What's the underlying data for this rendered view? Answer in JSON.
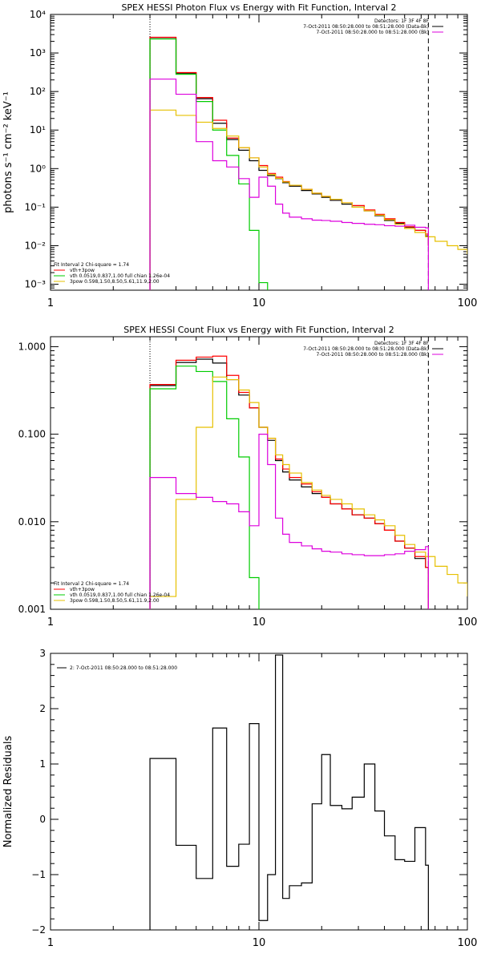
{
  "chart_data": [
    {
      "type": "line",
      "title": "SPEX HESSI Photon Flux vs Energy with Fit Function, Interval 2",
      "xlabel": "",
      "ylabel": "photons s⁻¹ cm⁻² keV⁻¹",
      "xscale": "log",
      "yscale": "log",
      "xlim": [
        1,
        100
      ],
      "ylim": [
        0.0007,
        10000
      ],
      "xticks": [
        {
          "v": 1,
          "label": "1"
        },
        {
          "v": 10,
          "label": "10"
        },
        {
          "v": 100,
          "label": "100"
        }
      ],
      "yticks": [
        {
          "v": 0.001,
          "label": "10⁻³"
        },
        {
          "v": 0.01,
          "label": "10⁻²"
        },
        {
          "v": 0.1,
          "label": "10⁻¹"
        },
        {
          "v": 1,
          "label": "10⁰"
        },
        {
          "v": 10,
          "label": "10¹"
        },
        {
          "v": 100,
          "label": "10²"
        },
        {
          "v": 1000,
          "label": "10³"
        },
        {
          "v": 10000,
          "label": "10⁴"
        }
      ],
      "vlines": [
        {
          "x": 3.0,
          "style": "dotted"
        },
        {
          "x": 65,
          "style": "dashed"
        }
      ],
      "legend_top_right": [
        "Detectors: 1F 3F 4F 8F",
        "7-Oct-2011 08:50:28.000 to 08:51:28.000 (Data-Bk)",
        "7-Oct-2011 08:50:28.000 to 08:51:28.000 (Bk)"
      ],
      "legend_bottom_left": [
        "Fit Interval  2    Chi-square = 1.74",
        "vth+3pow",
        "vth 0.0519,0.837,1.00  full chian 1.26e-04",
        "3pow 0.598,1.50,8.50,5.61,11.9,2.00"
      ],
      "series": [
        {
          "color": "#000000",
          "x": [
            3,
            4,
            5,
            6,
            7,
            8,
            9,
            10,
            11,
            12,
            13,
            14,
            16,
            18,
            20,
            22,
            25,
            28,
            32,
            36,
            40,
            45,
            50,
            56,
            63,
            65
          ],
          "y": [
            2500,
            300,
            65,
            15,
            5.7,
            3.0,
            1.6,
            0.9,
            0.66,
            0.55,
            0.43,
            0.35,
            0.27,
            0.22,
            0.18,
            0.15,
            0.12,
            0.1,
            0.08,
            0.06,
            0.045,
            0.038,
            0.03,
            0.025,
            0.018,
            0.01
          ]
        },
        {
          "color": "#ff0000",
          "x": [
            3,
            4,
            5,
            6,
            7,
            8,
            9,
            10,
            11,
            12,
            13,
            14,
            16,
            18,
            20,
            22,
            25,
            28,
            32,
            36,
            40,
            45,
            50,
            56,
            63,
            65
          ],
          "y": [
            2550,
            310,
            70,
            18,
            6.2,
            3.5,
            1.9,
            1.2,
            0.75,
            0.6,
            0.46,
            0.37,
            0.29,
            0.23,
            0.19,
            0.16,
            0.13,
            0.11,
            0.085,
            0.065,
            0.05,
            0.04,
            0.031,
            0.025,
            0.02,
            0.01
          ]
        },
        {
          "color": "#00cc00",
          "x": [
            3,
            4,
            5,
            6,
            7,
            8,
            9,
            10,
            11
          ],
          "y": [
            2300,
            280,
            55,
            10,
            2.2,
            0.4,
            0.025,
            0.0011,
            0.0007
          ]
        },
        {
          "color": "#e6c000",
          "x": [
            3,
            4,
            5,
            6,
            7,
            8,
            9,
            10,
            11,
            12,
            13,
            14,
            16,
            18,
            20,
            22,
            25,
            28,
            32,
            36,
            40,
            45,
            50,
            56,
            63,
            70,
            80,
            90,
            100
          ],
          "y": [
            33,
            24,
            16,
            11,
            7.0,
            3.5,
            1.9,
            1.1,
            0.7,
            0.56,
            0.45,
            0.37,
            0.29,
            0.23,
            0.19,
            0.16,
            0.13,
            0.1,
            0.08,
            0.062,
            0.047,
            0.036,
            0.028,
            0.022,
            0.017,
            0.013,
            0.01,
            0.008,
            0.006
          ]
        },
        {
          "color": "#dd00dd",
          "x": [
            3,
            4,
            5,
            6,
            7,
            8,
            9,
            10,
            11,
            12,
            13,
            14,
            16,
            18,
            20,
            22,
            25,
            28,
            32,
            36,
            40,
            45,
            50,
            56,
            63,
            65
          ],
          "y": [
            210,
            85,
            5.0,
            1.6,
            1.1,
            0.55,
            0.18,
            0.6,
            0.35,
            0.12,
            0.07,
            0.055,
            0.05,
            0.046,
            0.045,
            0.043,
            0.04,
            0.038,
            0.036,
            0.035,
            0.033,
            0.032,
            0.034,
            0.03,
            0.029,
            0.0007
          ]
        }
      ]
    },
    {
      "type": "line",
      "title": "SPEX HESSI Count Flux vs Energy with Fit Function, Interval 2",
      "xlabel": "",
      "ylabel": "",
      "xscale": "log",
      "yscale": "log",
      "xlim": [
        1,
        100
      ],
      "ylim": [
        0.001,
        1.3
      ],
      "xticks": [
        {
          "v": 1,
          "label": "1"
        },
        {
          "v": 10,
          "label": "10"
        },
        {
          "v": 100,
          "label": "100"
        }
      ],
      "yticks": [
        {
          "v": 0.001,
          "label": "0.001"
        },
        {
          "v": 0.01,
          "label": "0.010"
        },
        {
          "v": 0.1,
          "label": "0.100"
        },
        {
          "v": 1,
          "label": "1.000"
        }
      ],
      "vlines": [
        {
          "x": 3.0,
          "style": "dotted"
        },
        {
          "x": 65,
          "style": "dashed"
        }
      ],
      "legend_top_right": [
        "Detectors: 1F 3F 4F 8F",
        "7-Oct-2011 08:50:28.000 to 08:51:28.000 (Data-Bk)",
        "7-Oct-2011 08:50:28.000 to 08:51:28.000 (Bk)"
      ],
      "legend_bottom_left": [
        "Fit Interval  2    Chi-square = 1.74",
        "vth+3pow",
        "vth 0.0519,0.837,1.00  full chian 1.26e-04",
        "3pow 0.598,1.50,8.50,5.61,11.9,2.00"
      ],
      "series": [
        {
          "color": "#000000",
          "x": [
            3,
            4,
            5,
            6,
            7,
            8,
            9,
            10,
            11,
            12,
            13,
            14,
            16,
            18,
            20,
            22,
            25,
            28,
            32,
            36,
            40,
            45,
            50,
            56,
            63,
            65
          ],
          "y": [
            0.36,
            0.66,
            0.72,
            0.65,
            0.42,
            0.28,
            0.2,
            0.12,
            0.085,
            0.05,
            0.037,
            0.03,
            0.025,
            0.021,
            0.019,
            0.016,
            0.014,
            0.012,
            0.011,
            0.0095,
            0.008,
            0.006,
            0.005,
            0.0038,
            0.003,
            0.001
          ]
        },
        {
          "color": "#ff0000",
          "x": [
            3,
            4,
            5,
            6,
            7,
            8,
            9,
            10,
            11,
            12,
            13,
            14,
            16,
            18,
            20,
            22,
            25,
            28,
            32,
            36,
            40,
            45,
            50,
            56,
            63,
            65
          ],
          "y": [
            0.37,
            0.7,
            0.76,
            0.78,
            0.47,
            0.3,
            0.2,
            0.12,
            0.09,
            0.052,
            0.04,
            0.032,
            0.027,
            0.022,
            0.019,
            0.016,
            0.014,
            0.012,
            0.011,
            0.0095,
            0.008,
            0.006,
            0.005,
            0.004,
            0.003,
            0.001
          ]
        },
        {
          "color": "#00cc00",
          "x": [
            3,
            4,
            5,
            6,
            7,
            8,
            9,
            10
          ],
          "y": [
            0.33,
            0.6,
            0.52,
            0.4,
            0.15,
            0.055,
            0.0023,
            0.0001
          ]
        },
        {
          "color": "#e6c000",
          "x": [
            3,
            4,
            5,
            6,
            7,
            8,
            9,
            10,
            11,
            12,
            13,
            14,
            16,
            18,
            20,
            22,
            25,
            28,
            32,
            36,
            40,
            45,
            50,
            56,
            63,
            70,
            80,
            90,
            100
          ],
          "y": [
            0.0014,
            0.018,
            0.12,
            0.45,
            0.42,
            0.32,
            0.23,
            0.12,
            0.09,
            0.058,
            0.045,
            0.036,
            0.028,
            0.023,
            0.02,
            0.018,
            0.016,
            0.014,
            0.012,
            0.0105,
            0.009,
            0.007,
            0.0055,
            0.0045,
            0.004,
            0.0031,
            0.0025,
            0.002,
            0.0014
          ]
        },
        {
          "color": "#dd00dd",
          "x": [
            3,
            4,
            5,
            6,
            7,
            8,
            9,
            10,
            11,
            12,
            13,
            14,
            16,
            18,
            20,
            22,
            25,
            28,
            32,
            36,
            40,
            45,
            50,
            56,
            63,
            65
          ],
          "y": [
            0.032,
            0.021,
            0.019,
            0.017,
            0.016,
            0.013,
            0.009,
            0.1,
            0.045,
            0.011,
            0.0072,
            0.0058,
            0.0053,
            0.0049,
            0.0046,
            0.0045,
            0.0043,
            0.0042,
            0.0041,
            0.0041,
            0.0042,
            0.0043,
            0.0046,
            0.0048,
            0.0052,
            0.0001
          ]
        }
      ]
    },
    {
      "type": "line",
      "title": "",
      "xlabel": "",
      "ylabel": "Normalized Residuals",
      "xscale": "log",
      "yscale": "linear",
      "xlim": [
        1,
        100
      ],
      "ylim": [
        -2,
        3
      ],
      "xticks": [
        {
          "v": 1,
          "label": "1"
        },
        {
          "v": 10,
          "label": "10"
        },
        {
          "v": 100,
          "label": "100"
        }
      ],
      "yticks": [
        {
          "v": -2,
          "label": "−2"
        },
        {
          "v": -1,
          "label": "−1"
        },
        {
          "v": 0,
          "label": "0"
        },
        {
          "v": 1,
          "label": "1"
        },
        {
          "v": 2,
          "label": "2"
        },
        {
          "v": 3,
          "label": "3"
        }
      ],
      "legend_top_left": [
        "2:  7-Oct-2011 08:50:28.000 to 08:51:28.000"
      ],
      "series": [
        {
          "color": "#000000",
          "x": [
            3,
            4,
            5,
            6,
            7,
            8,
            9,
            10,
            11,
            12,
            13,
            14,
            16,
            18,
            20,
            22,
            25,
            28,
            32,
            36,
            40,
            45,
            50,
            56,
            63,
            65
          ],
          "y": [
            1.1,
            -0.47,
            -1.07,
            1.65,
            -0.85,
            -0.45,
            1.73,
            -1.83,
            -1.0,
            2.97,
            -1.43,
            -1.2,
            -1.15,
            0.28,
            1.17,
            0.25,
            0.19,
            0.4,
            1.0,
            0.15,
            -0.3,
            -0.73,
            -0.76,
            -0.15,
            -0.83,
            -2.0
          ]
        }
      ]
    }
  ]
}
